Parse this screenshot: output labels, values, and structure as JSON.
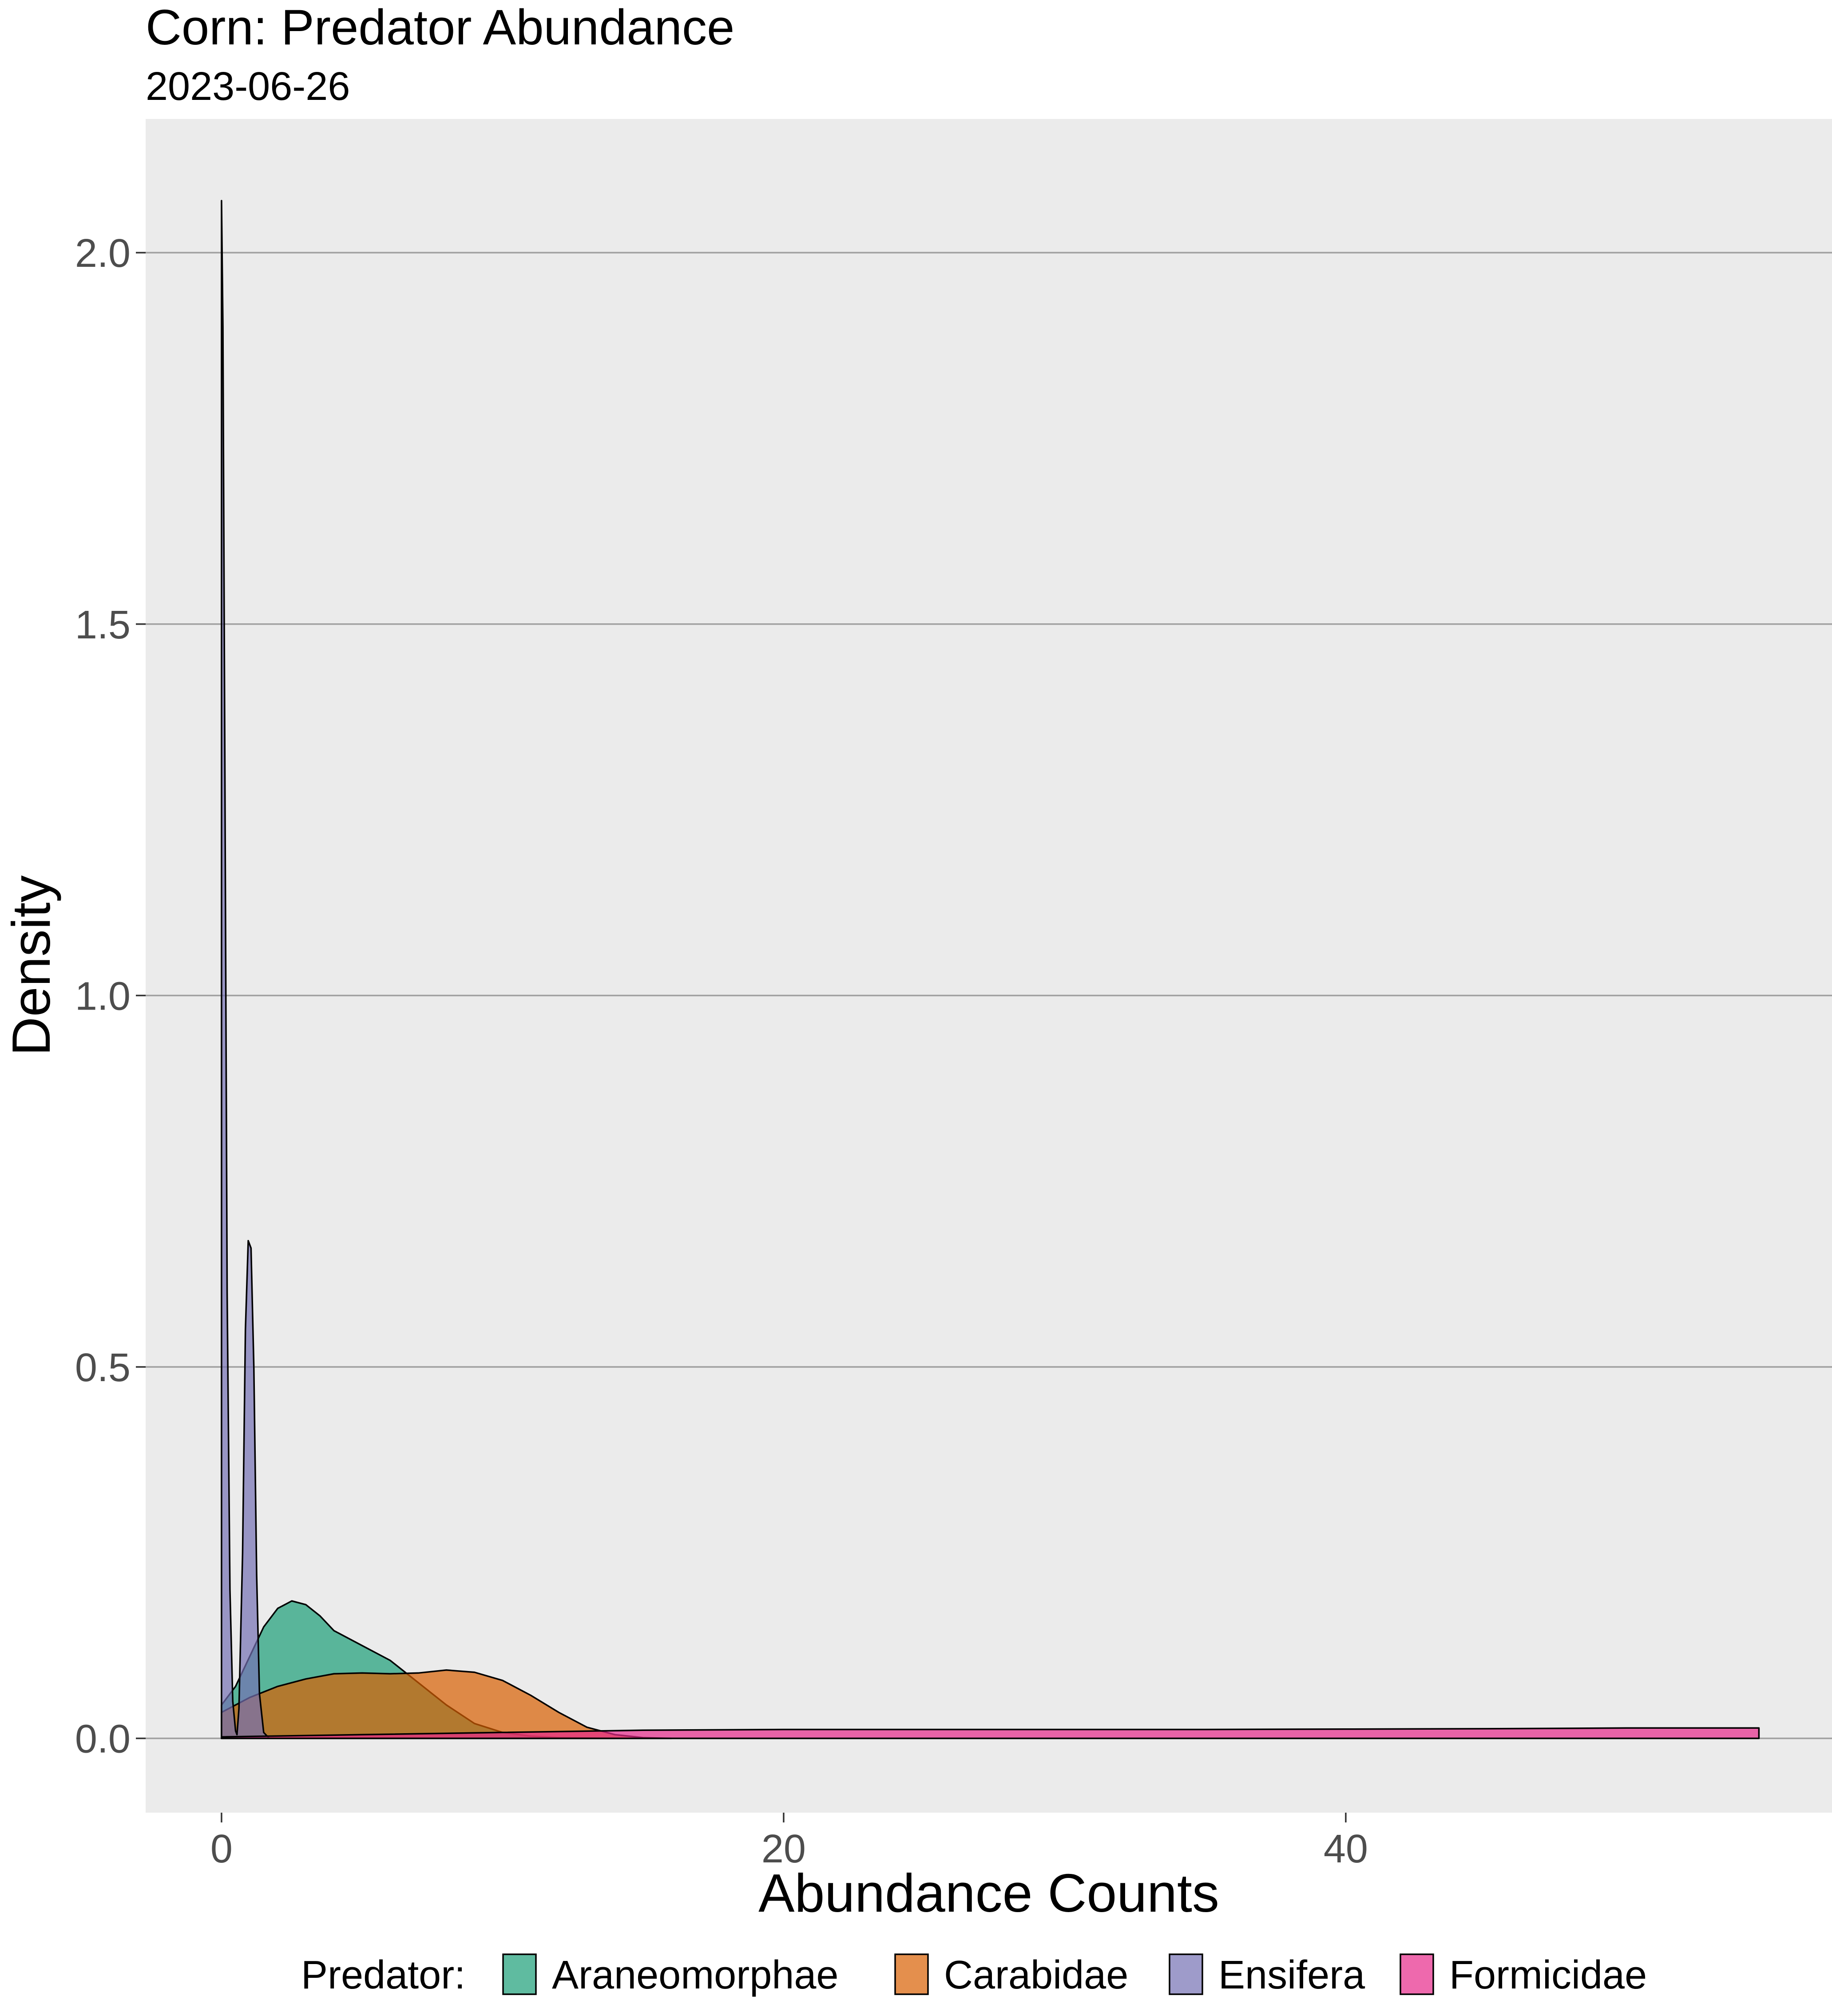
{
  "chart_data": {
    "type": "area",
    "title": "Corn: Predator Abundance",
    "subtitle": "2023-06-26",
    "xlabel": "Abundance Counts",
    "ylabel": "Density",
    "xlim": [
      -2.7,
      57.3
    ],
    "ylim": [
      -0.1,
      2.18
    ],
    "x_ticks": [
      0,
      20,
      40
    ],
    "x_tick_labels": [
      "0",
      "20",
      "40"
    ],
    "y_ticks": [
      0,
      0.5,
      1,
      1.5,
      2
    ],
    "y_tick_labels": [
      "0.0",
      "0.5",
      "1.0",
      "1.5",
      "2.0"
    ],
    "grid": true,
    "legend": {
      "position": "bottom",
      "title": "Predator:"
    },
    "series": [
      {
        "name": "Araneomorphae",
        "color": "#1b9e77",
        "fill_opacity": 0.7,
        "points": [
          [
            0,
            0.045
          ],
          [
            0.5,
            0.07
          ],
          [
            1,
            0.11
          ],
          [
            1.5,
            0.15
          ],
          [
            2,
            0.175
          ],
          [
            2.5,
            0.185
          ],
          [
            3,
            0.18
          ],
          [
            3.5,
            0.165
          ],
          [
            4,
            0.145
          ],
          [
            5,
            0.125
          ],
          [
            6,
            0.105
          ],
          [
            7,
            0.075
          ],
          [
            8,
            0.045
          ],
          [
            9,
            0.02
          ],
          [
            10,
            0.008
          ],
          [
            11,
            0.003
          ],
          [
            12,
            0.001
          ],
          [
            14,
            0.0
          ]
        ]
      },
      {
        "name": "Carabidae",
        "color": "#d95f02",
        "fill_opacity": 0.7,
        "points": [
          [
            0,
            0.035
          ],
          [
            1,
            0.055
          ],
          [
            2,
            0.07
          ],
          [
            3,
            0.08
          ],
          [
            4,
            0.087
          ],
          [
            5,
            0.088
          ],
          [
            6,
            0.087
          ],
          [
            7,
            0.088
          ],
          [
            8,
            0.092
          ],
          [
            9,
            0.089
          ],
          [
            10,
            0.078
          ],
          [
            11,
            0.058
          ],
          [
            12,
            0.035
          ],
          [
            13,
            0.015
          ],
          [
            14,
            0.005
          ],
          [
            15,
            0.001
          ],
          [
            16,
            0.0
          ]
        ]
      },
      {
        "name": "Ensifera",
        "color": "#7570b3",
        "fill_opacity": 0.7,
        "points": [
          [
            0,
            2.07
          ],
          [
            0.05,
            1.9
          ],
          [
            0.12,
            1.3
          ],
          [
            0.2,
            0.6
          ],
          [
            0.3,
            0.2
          ],
          [
            0.4,
            0.05
          ],
          [
            0.5,
            0.01
          ],
          [
            0.55,
            0.005
          ],
          [
            0.62,
            0.04
          ],
          [
            0.75,
            0.25
          ],
          [
            0.85,
            0.55
          ],
          [
            0.95,
            0.67
          ],
          [
            1.05,
            0.66
          ],
          [
            1.15,
            0.5
          ],
          [
            1.25,
            0.22
          ],
          [
            1.35,
            0.06
          ],
          [
            1.5,
            0.008
          ],
          [
            1.7,
            0.0
          ]
        ]
      },
      {
        "name": "Formicidae",
        "color": "#e7298a",
        "fill_opacity": 0.7,
        "points": [
          [
            0,
            0.002
          ],
          [
            5,
            0.005
          ],
          [
            10,
            0.008
          ],
          [
            15,
            0.011
          ],
          [
            20,
            0.012
          ],
          [
            25,
            0.012
          ],
          [
            30,
            0.012
          ],
          [
            35,
            0.012
          ],
          [
            40,
            0.0125
          ],
          [
            45,
            0.013
          ],
          [
            50,
            0.014
          ],
          [
            54.7,
            0.014
          ]
        ]
      }
    ]
  }
}
